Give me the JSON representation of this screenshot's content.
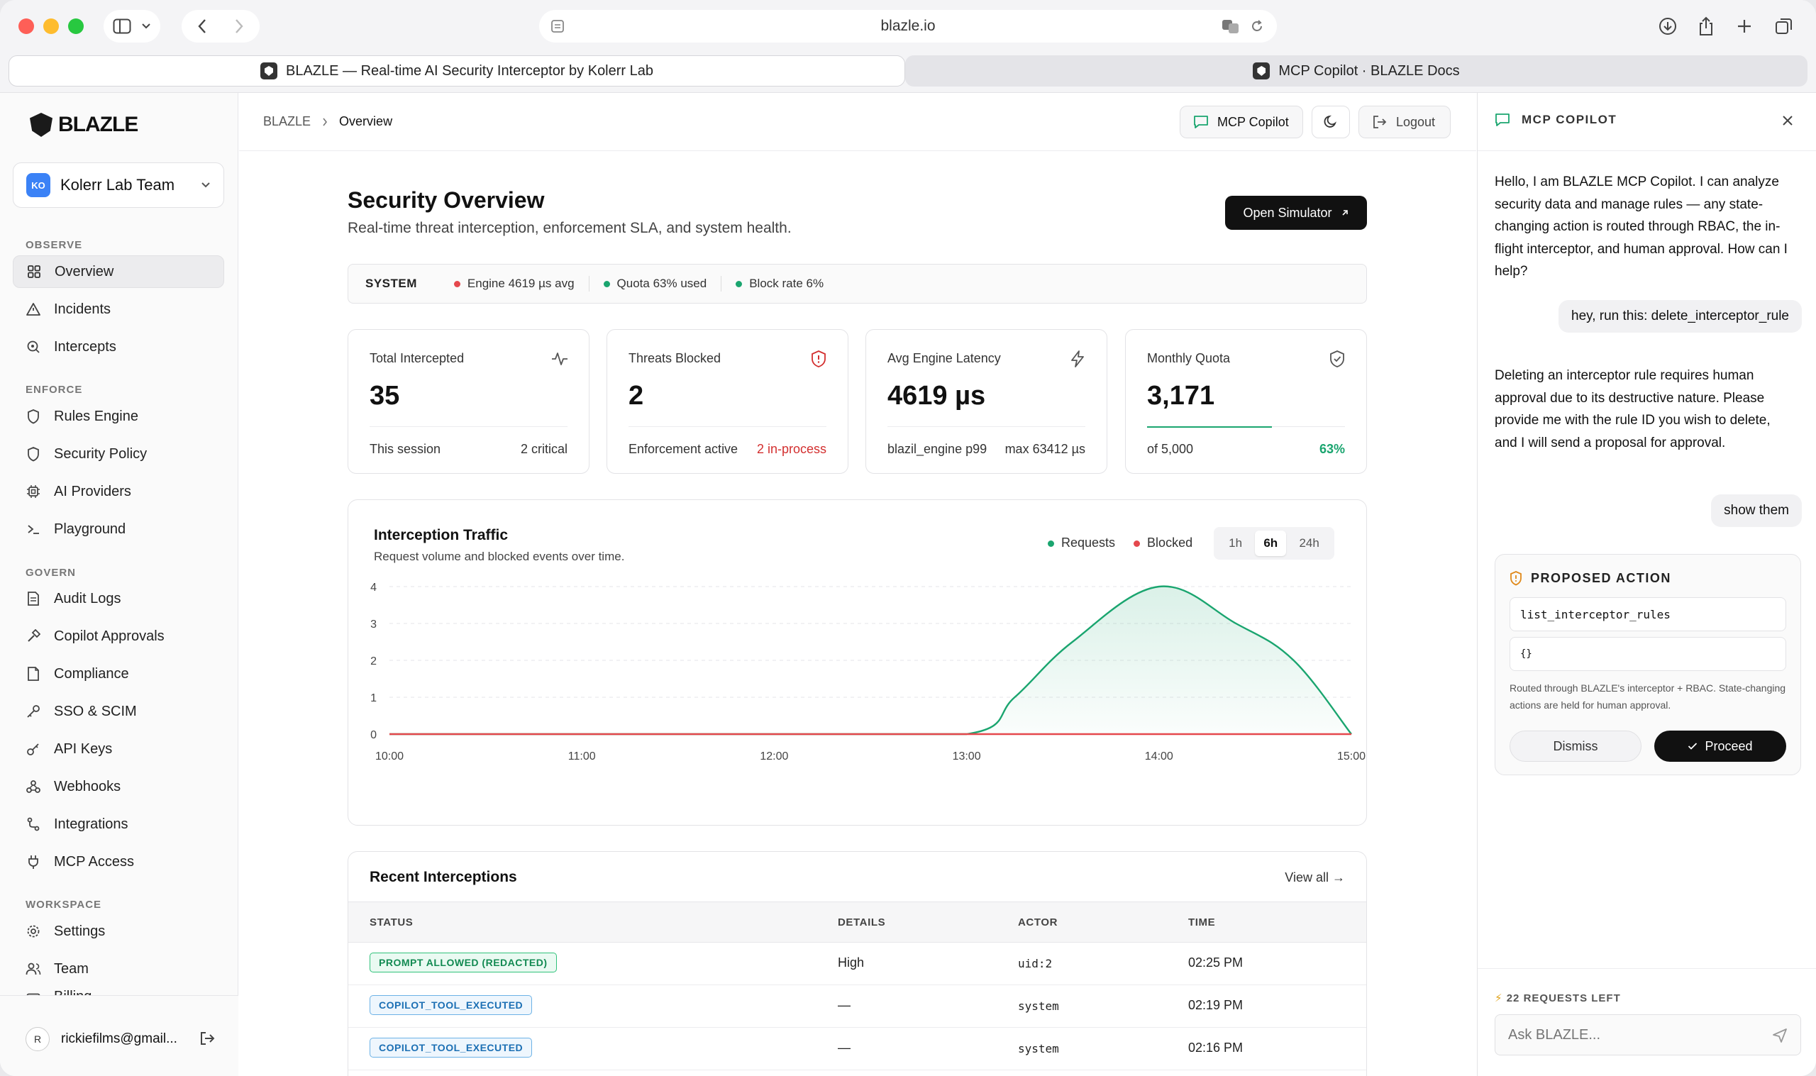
{
  "browser": {
    "url": "blazle.io",
    "tabs": [
      {
        "label": "BLAZLE — Real-time AI Security Interceptor by Kolerr Lab"
      },
      {
        "label": "MCP Copilot · BLAZLE Docs"
      }
    ]
  },
  "sidebar": {
    "brand": "BLAZLE",
    "team": {
      "initials": "KO",
      "name": "Kolerr Lab Team"
    },
    "sections": [
      {
        "label": "OBSERVE",
        "items": [
          {
            "label": "Overview",
            "icon": "grid-icon"
          },
          {
            "label": "Incidents",
            "icon": "alert-triangle-icon"
          },
          {
            "label": "Intercepts",
            "icon": "search-target-icon"
          }
        ]
      },
      {
        "label": "ENFORCE",
        "items": [
          {
            "label": "Rules Engine",
            "icon": "shield-icon"
          },
          {
            "label": "Security Policy",
            "icon": "shield-icon"
          },
          {
            "label": "AI Providers",
            "icon": "cpu-icon"
          },
          {
            "label": "Playground",
            "icon": "terminal-icon"
          }
        ]
      },
      {
        "label": "GOVERN",
        "items": [
          {
            "label": "Audit Logs",
            "icon": "file-text-icon"
          },
          {
            "label": "Copilot Approvals",
            "icon": "hammer-icon"
          },
          {
            "label": "Compliance",
            "icon": "file-icon"
          },
          {
            "label": "SSO & SCIM",
            "icon": "key-icon"
          },
          {
            "label": "API Keys",
            "icon": "key-round-icon"
          },
          {
            "label": "Webhooks",
            "icon": "webhook-icon"
          },
          {
            "label": "Integrations",
            "icon": "route-icon"
          },
          {
            "label": "MCP Access",
            "icon": "plug-icon"
          }
        ]
      },
      {
        "label": "WORKSPACE",
        "items": [
          {
            "label": "Settings",
            "icon": "gear-icon"
          },
          {
            "label": "Team",
            "icon": "users-icon"
          },
          {
            "label": "Billing",
            "icon": "card-icon"
          }
        ]
      }
    ],
    "user": {
      "initial": "R",
      "email": "rickiefilms@gmail..."
    }
  },
  "header": {
    "breadcrumb": [
      "BLAZLE",
      "Overview"
    ],
    "copilot_label": "MCP Copilot",
    "logout_label": "Logout"
  },
  "main": {
    "title": "Security Overview",
    "subtitle": "Real-time threat interception, enforcement SLA, and system health.",
    "open_simulator": "Open Simulator",
    "system": {
      "label": "SYSTEM",
      "items": [
        {
          "text": "Engine 4619 µs avg",
          "color": "#e5484d"
        },
        {
          "text": "Quota 63% used",
          "color": "#1aa56f"
        },
        {
          "text": "Block rate 6%",
          "color": "#1aa56f"
        }
      ]
    },
    "stats": [
      {
        "label": "Total Intercepted",
        "value": "35",
        "foot_left": "This session",
        "foot_right": "2 critical",
        "icon": "activity-icon",
        "foot_right_color": "#333333"
      },
      {
        "label": "Threats Blocked",
        "value": "2",
        "foot_left": "Enforcement active",
        "foot_right": "2 in-process",
        "icon": "shield-alert-icon",
        "foot_right_color": "#d32f2f"
      },
      {
        "label": "Avg Engine Latency",
        "value": "4619 µs",
        "foot_left": "blazil_engine p99",
        "foot_right": "max 63412 µs",
        "icon": "zap-icon",
        "foot_right_color": "#333333"
      },
      {
        "label": "Monthly Quota",
        "value": "3,171",
        "foot_left": "of 5,000",
        "foot_right": "63%",
        "icon": "shield-check-icon",
        "foot_right_color": "#1aa56f"
      }
    ],
    "traffic": {
      "title": "Interception Traffic",
      "subtitle": "Request volume and blocked events over time.",
      "legend": [
        {
          "label": "Requests",
          "color": "#1aa56f"
        },
        {
          "label": "Blocked",
          "color": "#e5484d"
        }
      ],
      "ranges": [
        "1h",
        "6h",
        "24h"
      ],
      "selected_range": "6h"
    },
    "recent": {
      "title": "Recent Interceptions",
      "view_all": "View all →",
      "columns": [
        "STATUS",
        "DETAILS",
        "ACTOR",
        "TIME"
      ],
      "rows": [
        {
          "status": "PROMPT ALLOWED (REDACTED)",
          "status_color": "green",
          "details": "High",
          "actor": "uid:2",
          "time": "02:25 PM"
        },
        {
          "status": "COPILOT_TOOL_EXECUTED",
          "status_color": "blue",
          "details": "—",
          "actor": "system",
          "time": "02:19 PM"
        },
        {
          "status": "COPILOT_TOOL_EXECUTED",
          "status_color": "blue",
          "details": "—",
          "actor": "system",
          "time": "02:16 PM"
        }
      ]
    }
  },
  "chart_data": {
    "type": "area",
    "title": "Interception Traffic",
    "xlabel": "",
    "ylabel": "",
    "x": [
      "10:00",
      "11:00",
      "12:00",
      "13:00",
      "14:00",
      "15:00"
    ],
    "ylim": [
      0,
      4
    ],
    "yticks": [
      0,
      1,
      2,
      3,
      4
    ],
    "grid": true,
    "legend": "top-right",
    "series": [
      {
        "name": "Requests",
        "color": "#1aa56f",
        "points": [
          [
            0,
            0
          ],
          [
            1,
            0
          ],
          [
            2,
            0
          ],
          [
            3,
            0
          ],
          [
            3.25,
            1
          ],
          [
            3.55,
            2.5
          ],
          [
            4,
            4
          ],
          [
            4.4,
            3
          ],
          [
            4.7,
            2
          ],
          [
            5,
            0
          ]
        ]
      },
      {
        "name": "Blocked",
        "color": "#e5484d",
        "points": [
          [
            0,
            0
          ],
          [
            1,
            0
          ],
          [
            2,
            0
          ],
          [
            3,
            0
          ],
          [
            4,
            0
          ],
          [
            5,
            0
          ]
        ]
      }
    ]
  },
  "copilot": {
    "title": "MCP COPILOT",
    "messages": [
      {
        "role": "bot",
        "text": "Hello, I am BLAZLE MCP Copilot. I can analyze security data and manage rules — any state-changing action is routed through RBAC, the in-flight interceptor, and human approval. How can I help?"
      },
      {
        "role": "user",
        "text": "hey, run this: delete_interceptor_rule"
      },
      {
        "role": "bot",
        "text": "Deleting an interceptor rule requires human approval due to its destructive nature. Please provide me with the rule ID you wish to delete, and I will send a proposal for approval."
      },
      {
        "role": "user",
        "text": "show them"
      }
    ],
    "proposal": {
      "title": "PROPOSED ACTION",
      "tool": "list_interceptor_rules",
      "args": "{}",
      "note": "Routed through BLAZLE's interceptor + RBAC. State-changing actions are held for human approval.",
      "dismiss": "Dismiss",
      "proceed": "Proceed"
    },
    "requests_left": "22 REQUESTS LEFT",
    "input_placeholder": "Ask BLAZLE..."
  }
}
